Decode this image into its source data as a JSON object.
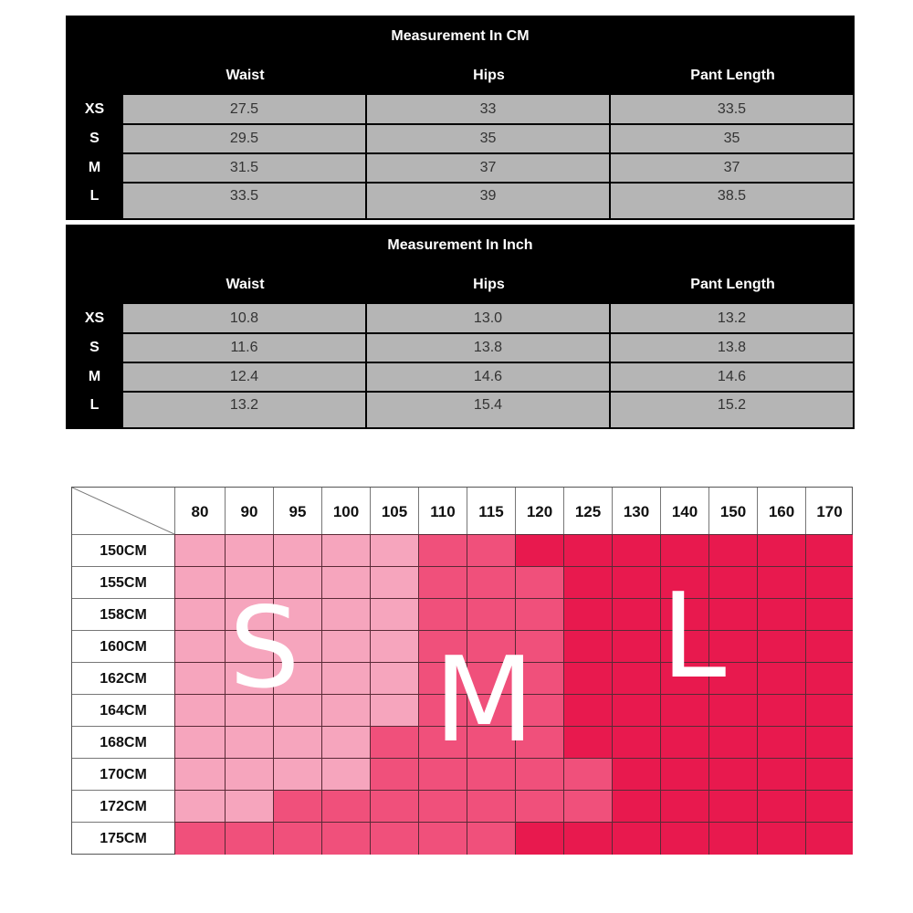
{
  "cm_table": {
    "title": "Measurement In CM",
    "headers": [
      "Waist",
      "Hips",
      "Pant Length"
    ],
    "rows": [
      {
        "size": "XS",
        "values": [
          "27.5",
          "33",
          "33.5"
        ]
      },
      {
        "size": "S",
        "values": [
          "29.5",
          "35",
          "35"
        ]
      },
      {
        "size": "M",
        "values": [
          "31.5",
          "37",
          "37"
        ]
      },
      {
        "size": "L",
        "values": [
          "33.5",
          "39",
          "38.5"
        ]
      }
    ]
  },
  "inch_table": {
    "title": "Measurement In Inch",
    "headers": [
      "Waist",
      "Hips",
      "Pant Length"
    ],
    "rows": [
      {
        "size": "XS",
        "values": [
          "10.8",
          "13.0",
          "13.2"
        ]
      },
      {
        "size": "S",
        "values": [
          "11.6",
          "13.8",
          "13.8"
        ]
      },
      {
        "size": "M",
        "values": [
          "12.4",
          "14.6",
          "14.6"
        ]
      },
      {
        "size": "L",
        "values": [
          "13.2",
          "15.4",
          "15.2"
        ]
      }
    ]
  },
  "size_chart": {
    "columns": [
      "80",
      "90",
      "95",
      "100",
      "105",
      "110",
      "115",
      "120",
      "125",
      "130",
      "140",
      "150",
      "160",
      "170"
    ],
    "rows": [
      "150CM",
      "155CM",
      "158CM",
      "160CM",
      "162CM",
      "164CM",
      "168CM",
      "170CM",
      "172CM",
      "175CM"
    ],
    "size_map": [
      [
        "S",
        "S",
        "S",
        "S",
        "S",
        "M",
        "M",
        "L",
        "L",
        "L",
        "L",
        "L",
        "L",
        "L"
      ],
      [
        "S",
        "S",
        "S",
        "S",
        "S",
        "M",
        "M",
        "M",
        "L",
        "L",
        "L",
        "L",
        "L",
        "L"
      ],
      [
        "S",
        "S",
        "S",
        "S",
        "S",
        "M",
        "M",
        "M",
        "L",
        "L",
        "L",
        "L",
        "L",
        "L"
      ],
      [
        "S",
        "S",
        "S",
        "S",
        "S",
        "M",
        "M",
        "M",
        "L",
        "L",
        "L",
        "L",
        "L",
        "L"
      ],
      [
        "S",
        "S",
        "S",
        "S",
        "S",
        "M",
        "M",
        "M",
        "L",
        "L",
        "L",
        "L",
        "L",
        "L"
      ],
      [
        "S",
        "S",
        "S",
        "S",
        "S",
        "M",
        "M",
        "M",
        "L",
        "L",
        "L",
        "L",
        "L",
        "L"
      ],
      [
        "S",
        "S",
        "S",
        "S",
        "M",
        "M",
        "M",
        "M",
        "L",
        "L",
        "L",
        "L",
        "L",
        "L"
      ],
      [
        "S",
        "S",
        "S",
        "S",
        "M",
        "M",
        "M",
        "M",
        "M",
        "L",
        "L",
        "L",
        "L",
        "L"
      ],
      [
        "S",
        "S",
        "M",
        "M",
        "M",
        "M",
        "M",
        "M",
        "M",
        "L",
        "L",
        "L",
        "L",
        "L"
      ],
      [
        "M",
        "M",
        "M",
        "M",
        "M",
        "M",
        "M",
        "L",
        "L",
        "L",
        "L",
        "L",
        "L",
        "L"
      ]
    ],
    "size_labels": {
      "S": "S",
      "M": "M",
      "L": "L"
    },
    "colors": {
      "S": "#f6a5bd",
      "M": "#f0507b",
      "L": "#e8194e"
    }
  }
}
